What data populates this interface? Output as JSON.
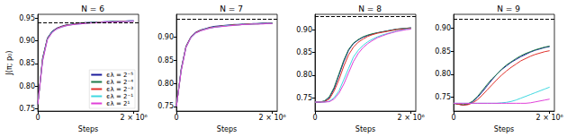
{
  "chart_data": [
    {
      "type": "line",
      "title": "N = 6",
      "x_label": "Steps",
      "y_label": "J(π; p₀)",
      "legend": "lower right",
      "xlim": [
        0,
        2100000
      ],
      "xticks": [
        0,
        {
          "value": 2000000,
          "label": "2 × 10⁶"
        }
      ],
      "ylim": [
        0.745,
        0.958
      ],
      "yticks": [
        0.75,
        {
          "value": 0.8,
          "label": "0.80"
        },
        0.85,
        {
          "value": 0.9,
          "label": "0.90"
        },
        0.95
      ],
      "optimum_line": 0.945,
      "x": [
        0,
        100000,
        200000,
        300000,
        400000,
        500000,
        600000,
        700000,
        800000,
        900000,
        1000000,
        1100000,
        1200000,
        1300000,
        1400000,
        1500000,
        1600000,
        1700000,
        1800000,
        1900000,
        2000000
      ],
      "series": [
        {
          "name": "ϵλ = 2⁻⁵",
          "color": "#1c1c9c",
          "values": [
            0.76,
            0.862,
            0.906,
            0.921,
            0.928,
            0.932,
            0.935,
            0.936,
            0.938,
            0.939,
            0.94,
            0.94,
            0.941,
            0.941,
            0.942,
            0.942,
            0.943,
            0.943,
            0.943,
            0.944,
            0.944
          ]
        },
        {
          "name": "ϵλ = 2⁻⁴",
          "color": "#1e7a4a",
          "values": [
            0.76,
            0.86,
            0.905,
            0.92,
            0.927,
            0.931,
            0.934,
            0.936,
            0.937,
            0.938,
            0.939,
            0.94,
            0.94,
            0.941,
            0.941,
            0.942,
            0.942,
            0.942,
            0.943,
            0.943,
            0.943
          ]
        },
        {
          "name": "ϵλ = 2⁻³",
          "color": "#e0302a",
          "values": [
            0.76,
            0.858,
            0.904,
            0.919,
            0.927,
            0.931,
            0.934,
            0.935,
            0.937,
            0.938,
            0.939,
            0.939,
            0.94,
            0.941,
            0.941,
            0.941,
            0.942,
            0.942,
            0.943,
            0.943,
            0.943
          ]
        },
        {
          "name": "ϵλ = 2⁻¹",
          "color": "#3fd8e0",
          "values": [
            0.76,
            0.856,
            0.903,
            0.919,
            0.926,
            0.93,
            0.933,
            0.935,
            0.936,
            0.937,
            0.938,
            0.939,
            0.94,
            0.94,
            0.941,
            0.941,
            0.942,
            0.942,
            0.942,
            0.943,
            0.943
          ]
        },
        {
          "name": "ϵλ = 2¹",
          "color": "#e040d8",
          "values": [
            0.76,
            0.855,
            0.902,
            0.918,
            0.926,
            0.93,
            0.933,
            0.935,
            0.936,
            0.937,
            0.938,
            0.939,
            0.939,
            0.94,
            0.941,
            0.941,
            0.941,
            0.942,
            0.942,
            0.942,
            0.943
          ]
        }
      ]
    },
    {
      "type": "line",
      "title": "N = 7",
      "x_label": "Steps",
      "xlim": [
        0,
        2100000
      ],
      "xticks": [
        0,
        {
          "value": 2000000,
          "label": "2 × 10⁶"
        }
      ],
      "ylim": [
        0.74,
        0.95
      ],
      "yticks": [
        0.75,
        {
          "value": 0.8,
          "label": "0.80"
        },
        0.85,
        {
          "value": 0.9,
          "label": "0.90"
        }
      ],
      "optimum_line": 0.94,
      "x": [
        0,
        100000,
        200000,
        300000,
        400000,
        500000,
        600000,
        700000,
        800000,
        900000,
        1000000,
        1100000,
        1200000,
        1300000,
        1400000,
        1500000,
        1600000,
        1700000,
        1800000,
        1900000,
        2000000
      ],
      "series": [
        {
          "name": "ϵλ = 2⁻⁵",
          "color": "#1c1c9c",
          "values": [
            0.75,
            0.832,
            0.881,
            0.901,
            0.911,
            0.916,
            0.919,
            0.922,
            0.924,
            0.925,
            0.926,
            0.927,
            0.928,
            0.928,
            0.929,
            0.929,
            0.93,
            0.93,
            0.931,
            0.931,
            0.931
          ]
        },
        {
          "name": "ϵλ = 2⁻⁴",
          "color": "#1e7a4a",
          "values": [
            0.75,
            0.83,
            0.88,
            0.9,
            0.91,
            0.915,
            0.918,
            0.921,
            0.923,
            0.924,
            0.925,
            0.926,
            0.927,
            0.928,
            0.928,
            0.929,
            0.929,
            0.93,
            0.93,
            0.93,
            0.931
          ]
        },
        {
          "name": "ϵλ = 2⁻³",
          "color": "#e0302a",
          "values": [
            0.75,
            0.829,
            0.879,
            0.9,
            0.91,
            0.915,
            0.918,
            0.921,
            0.922,
            0.924,
            0.925,
            0.926,
            0.927,
            0.927,
            0.928,
            0.929,
            0.929,
            0.929,
            0.93,
            0.93,
            0.93
          ]
        },
        {
          "name": "ϵλ = 2⁻¹",
          "color": "#3fd8e0",
          "values": [
            0.75,
            0.828,
            0.878,
            0.899,
            0.909,
            0.914,
            0.918,
            0.92,
            0.922,
            0.923,
            0.925,
            0.926,
            0.926,
            0.927,
            0.928,
            0.928,
            0.929,
            0.929,
            0.93,
            0.93,
            0.93
          ]
        },
        {
          "name": "ϵλ = 2¹",
          "color": "#e040d8",
          "values": [
            0.75,
            0.827,
            0.878,
            0.899,
            0.909,
            0.914,
            0.917,
            0.92,
            0.922,
            0.923,
            0.924,
            0.925,
            0.926,
            0.927,
            0.928,
            0.928,
            0.929,
            0.929,
            0.929,
            0.93,
            0.93
          ]
        }
      ]
    },
    {
      "type": "line",
      "title": "N = 8",
      "x_label": "Steps",
      "xlim": [
        0,
        2100000
      ],
      "xticks": [
        0,
        {
          "value": 2000000,
          "label": "2 × 10⁶"
        }
      ],
      "ylim": [
        0.72,
        0.935
      ],
      "yticks": [
        0.75,
        {
          "value": 0.8,
          "label": "0.80"
        },
        0.85,
        {
          "value": 0.9,
          "label": "0.90"
        }
      ],
      "optimum_line": 0.925,
      "x": [
        0,
        100000,
        200000,
        300000,
        400000,
        500000,
        600000,
        700000,
        800000,
        900000,
        1000000,
        1100000,
        1200000,
        1300000,
        1400000,
        1500000,
        1600000,
        1700000,
        1800000,
        1900000,
        2000000
      ],
      "series": [
        {
          "name": "ϵλ = 2⁻⁵",
          "color": "#1c1c9c",
          "values": [
            0.74,
            0.74,
            0.742,
            0.75,
            0.77,
            0.8,
            0.83,
            0.855,
            0.87,
            0.878,
            0.884,
            0.888,
            0.891,
            0.894,
            0.896,
            0.898,
            0.9,
            0.902,
            0.903,
            0.904,
            0.905
          ]
        },
        {
          "name": "ϵλ = 2⁻⁴",
          "color": "#1e7a4a",
          "values": [
            0.74,
            0.74,
            0.743,
            0.752,
            0.773,
            0.803,
            0.833,
            0.857,
            0.871,
            0.879,
            0.885,
            0.889,
            0.892,
            0.894,
            0.896,
            0.898,
            0.9,
            0.902,
            0.903,
            0.904,
            0.905
          ]
        },
        {
          "name": "ϵλ = 2⁻³",
          "color": "#e0302a",
          "values": [
            0.74,
            0.74,
            0.741,
            0.747,
            0.765,
            0.79,
            0.82,
            0.845,
            0.862,
            0.873,
            0.88,
            0.886,
            0.89,
            0.893,
            0.895,
            0.897,
            0.899,
            0.901,
            0.902,
            0.903,
            0.904
          ]
        },
        {
          "name": "ϵλ = 2⁻¹",
          "color": "#3fd8e0",
          "values": [
            0.74,
            0.74,
            0.74,
            0.742,
            0.75,
            0.765,
            0.79,
            0.815,
            0.84,
            0.855,
            0.866,
            0.874,
            0.88,
            0.885,
            0.889,
            0.892,
            0.895,
            0.898,
            0.9,
            0.902,
            0.903
          ]
        },
        {
          "name": "ϵλ = 2¹",
          "color": "#e040d8",
          "values": [
            0.74,
            0.74,
            0.74,
            0.741,
            0.747,
            0.76,
            0.78,
            0.805,
            0.83,
            0.848,
            0.861,
            0.87,
            0.877,
            0.883,
            0.887,
            0.891,
            0.894,
            0.897,
            0.899,
            0.901,
            0.902
          ]
        }
      ]
    },
    {
      "type": "line",
      "title": "N = 9",
      "x_label": "Steps",
      "xlim": [
        0,
        2100000
      ],
      "xticks": [
        0,
        {
          "value": 2000000,
          "label": "2 × 10⁶"
        }
      ],
      "ylim": [
        0.72,
        0.93
      ],
      "yticks": [
        0.75,
        {
          "value": 0.8,
          "label": "0.80"
        },
        0.85,
        {
          "value": 0.9,
          "label": "0.90"
        }
      ],
      "optimum_line": 0.92,
      "x": [
        0,
        100000,
        200000,
        300000,
        400000,
        500000,
        600000,
        700000,
        800000,
        900000,
        1000000,
        1100000,
        1200000,
        1300000,
        1400000,
        1500000,
        1600000,
        1700000,
        1800000,
        1900000,
        2000000
      ],
      "series": [
        {
          "name": "ϵλ = 2⁻⁵",
          "color": "#1c1c9c",
          "values": [
            0.737,
            0.735,
            0.733,
            0.735,
            0.74,
            0.75,
            0.762,
            0.775,
            0.788,
            0.8,
            0.81,
            0.818,
            0.826,
            0.832,
            0.838,
            0.843,
            0.848,
            0.852,
            0.855,
            0.858,
            0.86
          ]
        },
        {
          "name": "ϵλ = 2⁻⁴",
          "color": "#1e7a4a",
          "values": [
            0.737,
            0.735,
            0.734,
            0.736,
            0.742,
            0.752,
            0.765,
            0.778,
            0.79,
            0.8,
            0.811,
            0.82,
            0.827,
            0.834,
            0.84,
            0.845,
            0.849,
            0.853,
            0.856,
            0.859,
            0.861
          ]
        },
        {
          "name": "ϵλ = 2⁻³",
          "color": "#e0302a",
          "values": [
            0.737,
            0.735,
            0.733,
            0.734,
            0.738,
            0.745,
            0.755,
            0.766,
            0.777,
            0.788,
            0.798,
            0.807,
            0.815,
            0.822,
            0.829,
            0.834,
            0.839,
            0.843,
            0.846,
            0.849,
            0.851
          ]
        },
        {
          "name": "ϵλ = 2⁻¹",
          "color": "#3fd8e0",
          "values": [
            0.737,
            0.737,
            0.737,
            0.737,
            0.737,
            0.737,
            0.737,
            0.737,
            0.737,
            0.737,
            0.738,
            0.739,
            0.741,
            0.744,
            0.748,
            0.752,
            0.756,
            0.76,
            0.764,
            0.768,
            0.772
          ]
        },
        {
          "name": "ϵλ = 2¹",
          "color": "#e040d8",
          "values": [
            0.737,
            0.737,
            0.737,
            0.737,
            0.737,
            0.737,
            0.737,
            0.737,
            0.737,
            0.737,
            0.737,
            0.737,
            0.737,
            0.737,
            0.737,
            0.737,
            0.738,
            0.74,
            0.742,
            0.744,
            0.746
          ]
        }
      ]
    }
  ]
}
